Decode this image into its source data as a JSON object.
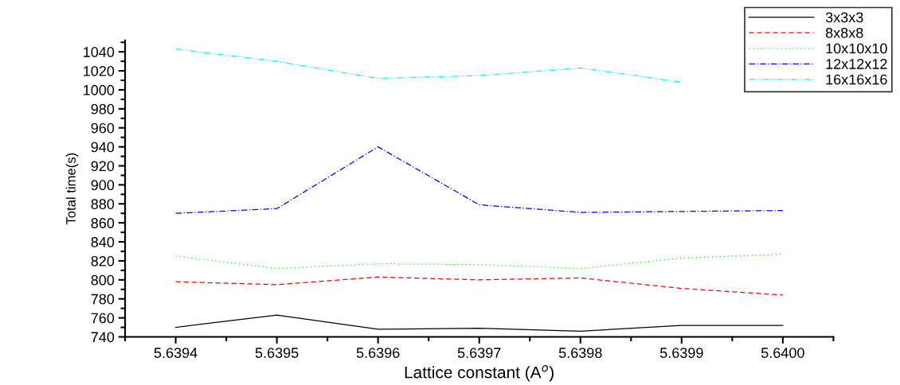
{
  "chart_data": {
    "type": "line",
    "xlabel": "Lattice constant (A$^{o}$)",
    "ylabel": "Total time(s)",
    "x": [
      5.6394,
      5.6395,
      5.6396,
      5.6397,
      5.6398,
      5.6399,
      5.64
    ],
    "xlim": [
      5.63935,
      5.64005
    ],
    "xticks": [
      {
        "value": 5.6394,
        "label": "5.6394"
      },
      {
        "value": 5.6395,
        "label": "5.6395"
      },
      {
        "value": 5.6396,
        "label": "5.6396"
      },
      {
        "value": 5.6397,
        "label": "5.6397"
      },
      {
        "value": 5.6398,
        "label": "5.6398"
      },
      {
        "value": 5.6399,
        "label": "5.6399"
      },
      {
        "value": 5.64,
        "label": "5.6400"
      }
    ],
    "ylim": [
      740,
      1052
    ],
    "yticks": [
      740,
      760,
      780,
      800,
      820,
      840,
      860,
      880,
      900,
      920,
      940,
      960,
      980,
      1000,
      1020,
      1040
    ],
    "grid": false,
    "legend": "top right",
    "marker": "none",
    "series": [
      {
        "name": "3x3x3",
        "color": "#000000",
        "line_style": "solid",
        "values": [
          750,
          763,
          748,
          749,
          746,
          752,
          752
        ]
      },
      {
        "name": "8x8x8",
        "color": "#ff0000",
        "line_style": "dashed",
        "values": [
          798,
          795,
          803,
          800,
          802,
          791,
          784
        ]
      },
      {
        "name": "10x10x10",
        "color": "#00ff00",
        "line_style": "dotted",
        "values": [
          825,
          812,
          817,
          816,
          812,
          823,
          827
        ]
      },
      {
        "name": "12x12x12",
        "color": "#0000ff",
        "line_style": "dashdot",
        "values": [
          870,
          875,
          940,
          879,
          871,
          872,
          873
        ]
      },
      {
        "name": "16x16x16",
        "color": "#00ffff",
        "line_style": "dashdotdot",
        "values": [
          1043,
          1030,
          1012,
          1015,
          1023,
          1008,
          null
        ]
      }
    ]
  }
}
